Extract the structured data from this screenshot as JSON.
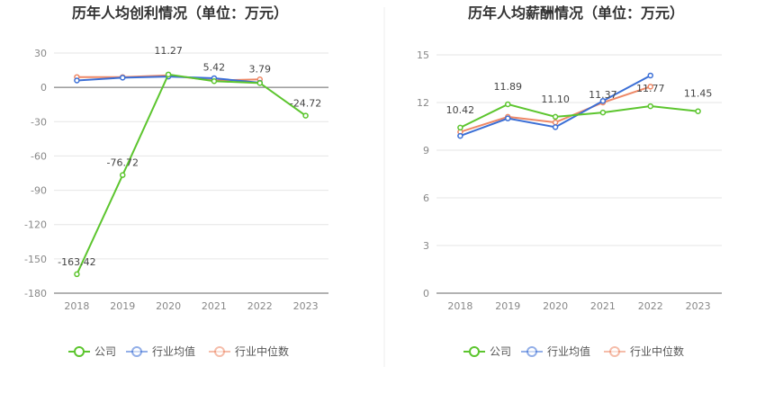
{
  "chart_data": [
    {
      "type": "line",
      "title": "历年人均创利情况（单位：万元）",
      "categories": [
        "2018",
        "2019",
        "2020",
        "2021",
        "2022",
        "2023"
      ],
      "ylim": [
        -180,
        30
      ],
      "yticks": [
        30,
        0,
        -30,
        -60,
        -90,
        -120,
        -150,
        -180
      ],
      "series": [
        {
          "name": "公司",
          "color": "#5cc52e",
          "values": [
            -163.42,
            -76.72,
            11.27,
            5.42,
            3.79,
            -24.72
          ]
        },
        {
          "name": "行业均值",
          "color": "#3b6fd6",
          "values": [
            6,
            8.5,
            9.5,
            8,
            4,
            null
          ]
        },
        {
          "name": "行业中位数",
          "color": "#ee8866",
          "values": [
            9,
            9,
            10.5,
            6,
            7,
            null
          ]
        }
      ],
      "data_labels": [
        "-163.42",
        "-76.72",
        "11.27",
        "5.42",
        "3.79",
        "-24.72"
      ]
    },
    {
      "type": "line",
      "title": "历年人均薪酬情况（单位：万元）",
      "categories": [
        "2018",
        "2019",
        "2020",
        "2021",
        "2022",
        "2023"
      ],
      "ylim": [
        0,
        15
      ],
      "yticks": [
        15,
        12,
        9,
        6,
        3,
        0
      ],
      "series": [
        {
          "name": "公司",
          "color": "#5cc52e",
          "values": [
            10.42,
            11.89,
            11.1,
            11.37,
            11.77,
            11.45
          ]
        },
        {
          "name": "行业均值",
          "color": "#3b6fd6",
          "values": [
            9.9,
            11.0,
            10.45,
            12.1,
            13.7,
            null
          ]
        },
        {
          "name": "行业中位数",
          "color": "#ee8866",
          "values": [
            10.15,
            11.1,
            10.75,
            12.0,
            13.0,
            null
          ]
        }
      ],
      "data_labels": [
        "10.42",
        "11.89",
        "11.10",
        "11.37",
        "11.77",
        "11.45"
      ]
    }
  ]
}
